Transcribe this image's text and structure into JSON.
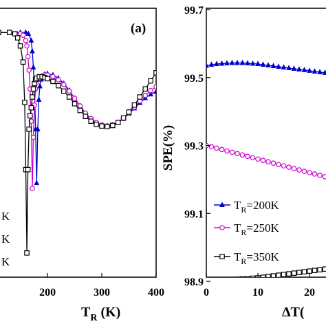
{
  "chart_data": [
    {
      "type": "line",
      "panel_label": "(a)",
      "xlabel_main": "T",
      "xlabel_sub": "R",
      "xlabel_unit": "(K)",
      "x_ticks": [
        "200",
        "300",
        "400"
      ],
      "xlim": [
        110,
        400
      ],
      "ylim": [
        0,
        1
      ],
      "grid": false,
      "legend_fragments": [
        "K",
        "K",
        "K"
      ],
      "series": [
        {
          "color": "#0000cc",
          "marker": "triangle",
          "x": [
            110,
            130,
            150,
            160,
            165,
            170,
            172,
            174,
            176,
            178,
            180,
            182,
            184,
            186,
            188,
            190,
            195,
            200,
            210,
            220,
            230,
            240,
            250,
            260,
            270,
            280,
            290,
            300,
            310,
            320,
            330,
            340,
            350,
            360,
            370,
            380,
            390,
            400
          ],
          "y": [
            0.91,
            0.91,
            0.91,
            0.91,
            0.905,
            0.88,
            0.84,
            0.78,
            0.7,
            0.55,
            0.35,
            0.55,
            0.66,
            0.71,
            0.735,
            0.745,
            0.755,
            0.757,
            0.752,
            0.74,
            0.72,
            0.695,
            0.665,
            0.635,
            0.605,
            0.585,
            0.57,
            0.563,
            0.562,
            0.566,
            0.575,
            0.59,
            0.608,
            0.628,
            0.648,
            0.666,
            0.68,
            0.69
          ]
        },
        {
          "color": "#cc00cc",
          "marker": "circle",
          "x": [
            110,
            130,
            150,
            155,
            160,
            162,
            164,
            166,
            168,
            170,
            172,
            174,
            176,
            178,
            180,
            185,
            190,
            195,
            200,
            210,
            220,
            230,
            240,
            250,
            260,
            270,
            280,
            290,
            300,
            310,
            320,
            330,
            340,
            350,
            360,
            370,
            380,
            390,
            400
          ],
          "y": [
            0.91,
            0.91,
            0.905,
            0.9,
            0.88,
            0.86,
            0.82,
            0.77,
            0.7,
            0.58,
            0.33,
            0.52,
            0.64,
            0.7,
            0.725,
            0.74,
            0.748,
            0.752,
            0.752,
            0.746,
            0.734,
            0.716,
            0.692,
            0.665,
            0.637,
            0.61,
            0.59,
            0.575,
            0.566,
            0.563,
            0.566,
            0.575,
            0.59,
            0.61,
            0.632,
            0.655,
            0.676,
            0.694,
            0.708
          ]
        },
        {
          "color": "#000000",
          "marker": "square",
          "x": [
            110,
            130,
            140,
            145,
            150,
            155,
            158,
            160,
            162,
            164,
            166,
            168,
            170,
            172,
            174,
            176,
            178,
            180,
            185,
            190,
            195,
            200,
            210,
            220,
            230,
            240,
            250,
            260,
            270,
            280,
            290,
            300,
            310,
            320,
            330,
            340,
            350,
            360,
            370,
            380,
            390,
            400
          ],
          "y": [
            0.91,
            0.91,
            0.905,
            0.89,
            0.86,
            0.8,
            0.65,
            0.4,
            0.09,
            0.4,
            0.55,
            0.6,
            0.63,
            0.67,
            0.7,
            0.72,
            0.735,
            0.74,
            0.745,
            0.745,
            0.742,
            0.738,
            0.728,
            0.712,
            0.692,
            0.67,
            0.645,
            0.62,
            0.598,
            0.58,
            0.568,
            0.562,
            0.56,
            0.564,
            0.575,
            0.592,
            0.614,
            0.64,
            0.67,
            0.7,
            0.73,
            0.76
          ]
        }
      ]
    },
    {
      "type": "line",
      "ylabel": "SPE(%)",
      "xlabel_visible": "ΔT(",
      "y_ticks": [
        "99.7",
        "99.5",
        "99.3",
        "99.1",
        "98.9"
      ],
      "y_tick_values": [
        99.7,
        99.5,
        99.3,
        99.1,
        98.9
      ],
      "x_ticks": [
        "0",
        "10",
        "20"
      ],
      "x_tick_values": [
        0,
        10,
        20
      ],
      "xlim": [
        0,
        24
      ],
      "ylim": [
        98.9,
        99.7
      ],
      "grid": false,
      "legend_placement": "bottom-left",
      "legend": [
        {
          "main": "T",
          "sub": "R",
          "rest": "=200K"
        },
        {
          "main": "T",
          "sub": "R",
          "rest": "=250K"
        },
        {
          "main": "T",
          "sub": "R",
          "rest": "=350K"
        }
      ],
      "series": [
        {
          "color": "#0000cc",
          "marker": "triangle",
          "x": [
            0,
            1,
            2,
            3,
            4,
            5,
            6,
            7,
            8,
            9,
            10,
            11,
            12,
            13,
            14,
            15,
            16,
            17,
            18,
            19,
            20,
            21,
            22,
            23,
            24
          ],
          "y": [
            99.535,
            99.538,
            99.54,
            99.541,
            99.542,
            99.543,
            99.543,
            99.543,
            99.542,
            99.541,
            99.54,
            99.538,
            99.536,
            99.534,
            99.532,
            99.53,
            99.528,
            99.526,
            99.524,
            99.522,
            99.52,
            99.518,
            99.516,
            99.514,
            99.512
          ]
        },
        {
          "color": "#cc00cc",
          "marker": "circle",
          "x": [
            0,
            1,
            2,
            3,
            4,
            5,
            6,
            7,
            8,
            9,
            10,
            11,
            12,
            13,
            14,
            15,
            16,
            17,
            18,
            19,
            20,
            21,
            22,
            23,
            24
          ],
          "y": [
            99.3,
            99.296,
            99.292,
            99.288,
            99.284,
            99.28,
            99.276,
            99.272,
            99.268,
            99.264,
            99.26,
            99.256,
            99.252,
            99.248,
            99.244,
            99.24,
            99.236,
            99.232,
            99.228,
            99.224,
            99.22,
            99.216,
            99.212,
            99.208,
            99.204
          ]
        },
        {
          "color": "#000000",
          "marker": "square",
          "x": [
            0,
            1,
            2,
            3,
            4,
            5,
            6,
            7,
            8,
            9,
            10,
            11,
            12,
            13,
            14,
            15,
            16,
            17,
            18,
            19,
            20,
            21,
            22,
            23,
            24
          ],
          "y": [
            98.9,
            98.901,
            98.902,
            98.903,
            98.904,
            98.905,
            98.906,
            98.907,
            98.908,
            98.909,
            98.91,
            98.912,
            98.914,
            98.916,
            98.918,
            98.92,
            98.922,
            98.924,
            98.926,
            98.928,
            98.93,
            98.932,
            98.934,
            98.936,
            98.938
          ]
        }
      ]
    }
  ]
}
